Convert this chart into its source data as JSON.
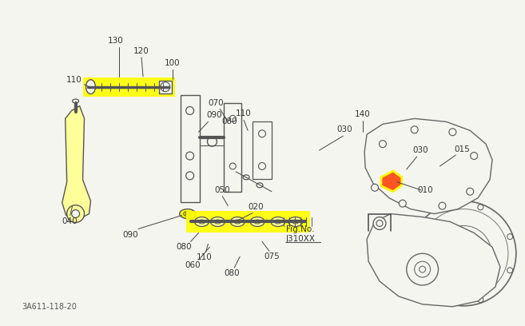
{
  "bg_color": "#f5f5f0",
  "line_color": "#555555",
  "highlight_yellow": "#ffff00",
  "highlight_red": "#ff4400",
  "fig_no_line1": "Fig.No.",
  "fig_no_line2": "J310XX",
  "part_code": "3A611-118-20"
}
